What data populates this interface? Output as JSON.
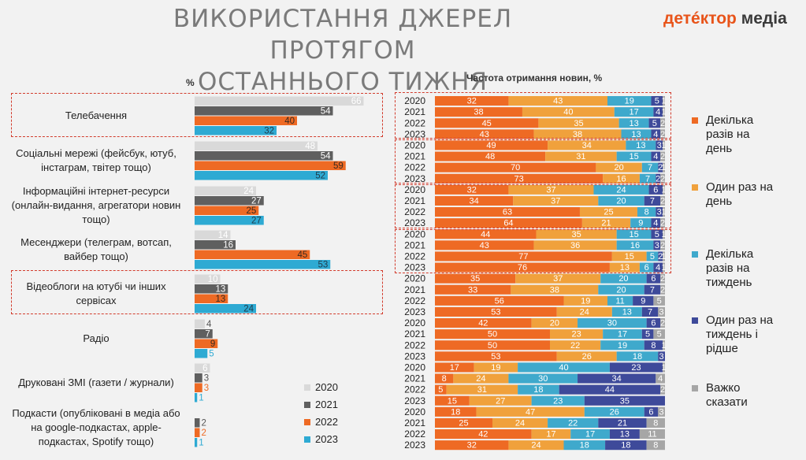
{
  "header": {
    "title_line1": "ВИКОРИСТАННЯ ДЖЕРЕЛ ПРОТЯГОМ",
    "title_line2": "ОСТАННЬОГО ТИЖНЯ",
    "brand_a": "детéктор",
    "brand_b": " медіа"
  },
  "left_axis_label": "%",
  "right_title": "Частота отримання новин, %",
  "colors": {
    "y2020": "#d9d9d9",
    "y2021": "#5f5f5f",
    "y2022": "#ee6a24",
    "y2023": "#2eaad3",
    "f1": "#ee6a24",
    "f2": "#f0a13c",
    "f3": "#3fa9cc",
    "f4": "#3e4a9a",
    "f5": "#a6a6a6",
    "accent": "#d23b2c"
  },
  "chart_data": [
    {
      "type": "bar",
      "orientation": "horizontal",
      "ylabel": "%",
      "categories": [
        "Телебачення",
        "Соціальні мережі (фейсбук, ютуб, інстаграм, твітер тощо)",
        "Інформаційні інтернет-ресурси (онлайн-видання, агрегатори новин тощо)",
        "Месенджери (телеграм, вотсап, вайбер тощо)",
        "Відеоблоги на ютубі чи інших сервісах",
        "Радіо",
        "Друковані ЗМІ (газети / журнали)",
        "Подкасти (опубліковані в медіа або на google-подкастах, apple-подкастах, Spotify тощо)"
      ],
      "category_lines": [
        [
          "Телебачення"
        ],
        [
          "Соціальні мережі (фейсбук, ютуб,",
          "інстаграм, твітер тощо)"
        ],
        [
          "Інформаційні інтернет-ресурси",
          "(онлайн-видання, агрегатори новин",
          "тощо)"
        ],
        [
          "Месенджери (телеграм, вотсап,",
          "вайбер тощо)"
        ],
        [
          "Відеоблоги на ютубі  чи інших",
          "сервісах"
        ],
        [
          "Радіо"
        ],
        [
          "Друковані ЗМІ (газети / журнали)"
        ],
        [
          "Подкасти (опубліковані в медіа або",
          "на google-подкастах, apple-",
          "подкастах, Spotify тощо)"
        ]
      ],
      "series": [
        {
          "name": "2020",
          "values": [
            66,
            48,
            24,
            14,
            10,
            4,
            6,
            null
          ]
        },
        {
          "name": "2021",
          "values": [
            54,
            54,
            27,
            16,
            13,
            7,
            3,
            2
          ]
        },
        {
          "name": "2022",
          "values": [
            40,
            59,
            25,
            45,
            13,
            9,
            3,
            2
          ]
        },
        {
          "name": "2023",
          "values": [
            32,
            52,
            27,
            53,
            24,
            5,
            1,
            1
          ]
        }
      ],
      "legend": [
        "2020",
        "2021",
        "2022",
        "2023"
      ],
      "legend_position": "bottom-right"
    },
    {
      "type": "bar",
      "orientation": "horizontal",
      "stacked": true,
      "title": "Частота отримання новин, %",
      "series_names": [
        "Декілька разів на день",
        "Один раз на день",
        "Декілька разів на тиждень",
        "Один раз на тиждень і рідше",
        "Важко сказати"
      ],
      "legend_lines": [
        [
          "Декілька",
          "разів на",
          "день"
        ],
        [
          "Один раз на",
          "день"
        ],
        [
          "Декілька",
          "разів на",
          "тиждень"
        ],
        [
          "Один раз на",
          "тиждень і",
          "рідше"
        ],
        [
          "Важко",
          "сказати"
        ]
      ],
      "legend_position": "right",
      "groups": [
        {
          "source": "Телебачення",
          "rows": [
            {
              "year": "2020",
              "values": [
                32,
                43,
                19,
                5,
                1
              ]
            },
            {
              "year": "2021",
              "values": [
                38,
                40,
                17,
                4,
                1
              ]
            },
            {
              "year": "2022",
              "values": [
                45,
                35,
                13,
                5,
                2
              ]
            },
            {
              "year": "2023",
              "values": [
                43,
                38,
                13,
                4,
                2
              ]
            }
          ]
        },
        {
          "source": "Соціальні мережі",
          "rows": [
            {
              "year": "2020",
              "values": [
                49,
                34,
                13,
                3,
                1
              ]
            },
            {
              "year": "2021",
              "values": [
                48,
                31,
                15,
                4,
                2
              ]
            },
            {
              "year": "2022",
              "values": [
                70,
                20,
                7,
                2,
                1
              ]
            },
            {
              "year": "2023",
              "values": [
                73,
                16,
                7,
                2,
                2
              ]
            }
          ]
        },
        {
          "source": "Інформаційні інтернет-ресурси",
          "rows": [
            {
              "year": "2020",
              "values": [
                32,
                37,
                24,
                6,
                1
              ]
            },
            {
              "year": "2021",
              "values": [
                34,
                37,
                20,
                7,
                2
              ]
            },
            {
              "year": "2022",
              "values": [
                63,
                25,
                8,
                3,
                1
              ]
            },
            {
              "year": "2023",
              "values": [
                64,
                21,
                9,
                4,
                2
              ]
            }
          ]
        },
        {
          "source": "Месенджери",
          "rows": [
            {
              "year": "2020",
              "values": [
                44,
                35,
                15,
                5,
                1
              ]
            },
            {
              "year": "2021",
              "values": [
                43,
                36,
                16,
                3,
                2
              ]
            },
            {
              "year": "2022",
              "values": [
                77,
                15,
                5,
                2,
                1
              ]
            },
            {
              "year": "2023",
              "values": [
                76,
                13,
                6,
                4,
                1
              ]
            }
          ]
        },
        {
          "source": "Відеоблоги",
          "rows": [
            {
              "year": "2020",
              "values": [
                35,
                37,
                20,
                6,
                2
              ]
            },
            {
              "year": "2021",
              "values": [
                33,
                38,
                20,
                7,
                2
              ]
            },
            {
              "year": "2022",
              "values": [
                56,
                19,
                11,
                9,
                5
              ]
            },
            {
              "year": "2023",
              "values": [
                53,
                24,
                13,
                7,
                3
              ]
            }
          ]
        },
        {
          "source": "Радіо",
          "rows": [
            {
              "year": "2020",
              "values": [
                42,
                20,
                30,
                6,
                2
              ]
            },
            {
              "year": "2021",
              "values": [
                50,
                23,
                17,
                5,
                5
              ]
            },
            {
              "year": "2022",
              "values": [
                50,
                22,
                19,
                8,
                1
              ]
            },
            {
              "year": "2023",
              "values": [
                53,
                26,
                18,
                3,
                0
              ]
            }
          ]
        },
        {
          "source": "Друковані ЗМІ",
          "rows": [
            {
              "year": "2020",
              "values": [
                17,
                19,
                40,
                23,
                1
              ]
            },
            {
              "year": "2021",
              "values": [
                8,
                24,
                30,
                34,
                4
              ]
            },
            {
              "year": "2022",
              "values": [
                5,
                31,
                18,
                44,
                2
              ]
            },
            {
              "year": "2023",
              "values": [
                15,
                27,
                23,
                35,
                0
              ]
            }
          ]
        },
        {
          "source": "Подкасти",
          "rows": [
            {
              "year": "2020",
              "values": [
                18,
                47,
                26,
                6,
                3
              ]
            },
            {
              "year": "2021",
              "values": [
                25,
                24,
                22,
                21,
                8
              ]
            },
            {
              "year": "2022",
              "values": [
                42,
                17,
                17,
                13,
                11
              ]
            },
            {
              "year": "2023",
              "values": [
                32,
                24,
                18,
                18,
                8
              ]
            }
          ]
        }
      ]
    }
  ]
}
